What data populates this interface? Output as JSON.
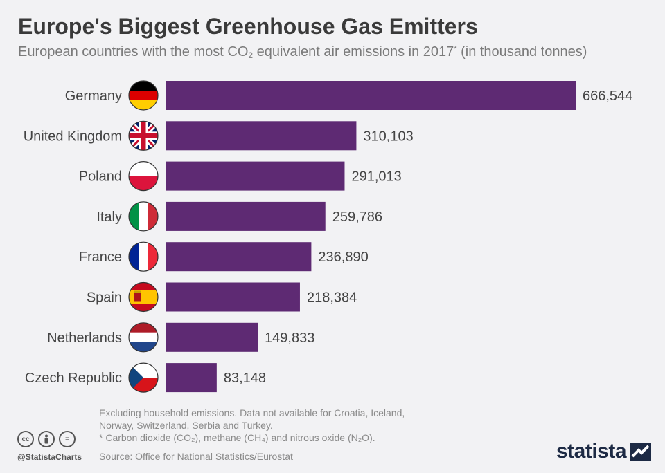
{
  "header": {
    "title": "Europe's Biggest Greenhouse Gas Emitters",
    "subtitle_pre": "European countries with the most CO",
    "subtitle_sub": "2",
    "subtitle_mid": " equivalent air emissions in 2017",
    "subtitle_sup": "*",
    "subtitle_post": " (in thousand tonnes)"
  },
  "colors": {
    "bar": "#5e2a73",
    "background": "#f2f2f4",
    "label": "#444444"
  },
  "chart_data": {
    "type": "bar",
    "orientation": "horizontal",
    "categories": [
      "Germany",
      "United Kingdom",
      "Poland",
      "Italy",
      "France",
      "Spain",
      "Netherlands",
      "Czech Republic"
    ],
    "values": [
      666544,
      310103,
      291013,
      259786,
      236890,
      218384,
      149833,
      83148
    ],
    "value_labels": [
      "666,544",
      "310,103",
      "291,013",
      "259,786",
      "236,890",
      "218,384",
      "149,833",
      "83,148"
    ],
    "icons": [
      "flag-germany-icon",
      "flag-uk-icon",
      "flag-poland-icon",
      "flag-italy-icon",
      "flag-france-icon",
      "flag-spain-icon",
      "flag-netherlands-icon",
      "flag-czech-republic-icon"
    ],
    "grid": false,
    "legend": "none"
  },
  "footer": {
    "note1": "Excluding household emissions. Data not available for Croatia, Iceland,",
    "note2": "Norway, Switzerland, Serbia and Turkey.",
    "note3": "* Carbon dioxide (CO₂), methane (CH₄) and nitrous oxide (N₂O).",
    "source": "Source: Office for National Statistics/Eurostat",
    "handle": "@StatistaCharts",
    "brand": "statista",
    "cc": [
      "cc",
      "by",
      "="
    ]
  }
}
